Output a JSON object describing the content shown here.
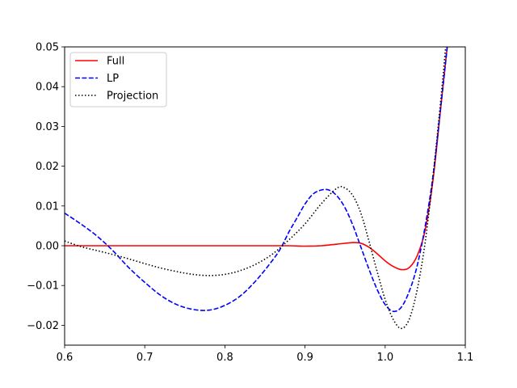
{
  "chart_data": {
    "type": "line",
    "title": "",
    "xlabel": "",
    "ylabel": "",
    "xlim": [
      0.6,
      1.1
    ],
    "ylim": [
      -0.025,
      0.05
    ],
    "grid": false,
    "legend_position": "upper-left",
    "x_ticks": [
      0.6,
      0.7,
      0.8,
      0.9,
      1.0,
      1.1
    ],
    "x_tick_labels": [
      "0.6",
      "0.7",
      "0.8",
      "0.9",
      "1.0",
      "1.1"
    ],
    "y_ticks": [
      -0.02,
      -0.01,
      0.0,
      0.01,
      0.02,
      0.03,
      0.04,
      0.05
    ],
    "y_tick_labels": [
      "−0.02",
      "−0.01",
      "0.00",
      "0.01",
      "0.02",
      "0.03",
      "0.04",
      "0.05"
    ],
    "series": [
      {
        "name": "Full",
        "color": "#ff0000",
        "dash": "solid",
        "points": [
          [
            0.6,
            0.0
          ],
          [
            0.65,
            0.0
          ],
          [
            0.7,
            0.0
          ],
          [
            0.75,
            0.0
          ],
          [
            0.8,
            0.0
          ],
          [
            0.85,
            0.0
          ],
          [
            0.88,
            0.0
          ],
          [
            0.9,
            -0.0001
          ],
          [
            0.92,
            0.0
          ],
          [
            0.94,
            0.0004
          ],
          [
            0.96,
            0.0008
          ],
          [
            0.97,
            0.0006
          ],
          [
            0.98,
            -0.0004
          ],
          [
            0.99,
            -0.002
          ],
          [
            1.0,
            -0.0038
          ],
          [
            1.01,
            -0.0052
          ],
          [
            1.02,
            -0.006
          ],
          [
            1.03,
            -0.0055
          ],
          [
            1.04,
            -0.0025
          ],
          [
            1.05,
            0.004
          ],
          [
            1.06,
            0.017
          ],
          [
            1.07,
            0.036
          ],
          [
            1.078,
            0.051
          ]
        ]
      },
      {
        "name": "LP",
        "color": "#0000ff",
        "dash": "dashed",
        "points": [
          [
            0.6,
            0.0082
          ],
          [
            0.62,
            0.0055
          ],
          [
            0.64,
            0.0025
          ],
          [
            0.66,
            -0.0012
          ],
          [
            0.68,
            -0.0055
          ],
          [
            0.7,
            -0.0092
          ],
          [
            0.72,
            -0.0125
          ],
          [
            0.74,
            -0.0148
          ],
          [
            0.76,
            -0.016
          ],
          [
            0.78,
            -0.0162
          ],
          [
            0.8,
            -0.015
          ],
          [
            0.82,
            -0.0125
          ],
          [
            0.84,
            -0.0085
          ],
          [
            0.86,
            -0.0035
          ],
          [
            0.87,
            -0.0005
          ],
          [
            0.88,
            0.0035
          ],
          [
            0.89,
            0.007
          ],
          [
            0.9,
            0.0105
          ],
          [
            0.91,
            0.013
          ],
          [
            0.92,
            0.014
          ],
          [
            0.93,
            0.014
          ],
          [
            0.94,
            0.0125
          ],
          [
            0.95,
            0.0095
          ],
          [
            0.96,
            0.005
          ],
          [
            0.97,
            -0.0005
          ],
          [
            0.98,
            -0.006
          ],
          [
            0.99,
            -0.011
          ],
          [
            1.0,
            -0.0148
          ],
          [
            1.01,
            -0.0165
          ],
          [
            1.02,
            -0.0155
          ],
          [
            1.03,
            -0.0115
          ],
          [
            1.04,
            -0.005
          ],
          [
            1.05,
            0.005
          ],
          [
            1.06,
            0.018
          ],
          [
            1.07,
            0.036
          ],
          [
            1.078,
            0.051
          ]
        ]
      },
      {
        "name": "Projection",
        "color": "#000000",
        "dash": "dotted",
        "points": [
          [
            0.6,
            0.0012
          ],
          [
            0.62,
            -0.0002
          ],
          [
            0.64,
            -0.0012
          ],
          [
            0.66,
            -0.0022
          ],
          [
            0.68,
            -0.0033
          ],
          [
            0.7,
            -0.0045
          ],
          [
            0.72,
            -0.0056
          ],
          [
            0.74,
            -0.0065
          ],
          [
            0.76,
            -0.0072
          ],
          [
            0.78,
            -0.0075
          ],
          [
            0.8,
            -0.0072
          ],
          [
            0.82,
            -0.0062
          ],
          [
            0.84,
            -0.0045
          ],
          [
            0.86,
            -0.002
          ],
          [
            0.88,
            0.0015
          ],
          [
            0.9,
            0.0055
          ],
          [
            0.92,
            0.0105
          ],
          [
            0.94,
            0.0145
          ],
          [
            0.95,
            0.0145
          ],
          [
            0.96,
            0.0125
          ],
          [
            0.97,
            0.008
          ],
          [
            0.98,
            0.001
          ],
          [
            0.99,
            -0.0065
          ],
          [
            1.0,
            -0.0135
          ],
          [
            1.01,
            -0.0185
          ],
          [
            1.02,
            -0.0208
          ],
          [
            1.03,
            -0.0185
          ],
          [
            1.04,
            -0.011
          ],
          [
            1.05,
            0.001
          ],
          [
            1.06,
            0.018
          ],
          [
            1.07,
            0.038
          ],
          [
            1.076,
            0.051
          ]
        ]
      }
    ]
  }
}
